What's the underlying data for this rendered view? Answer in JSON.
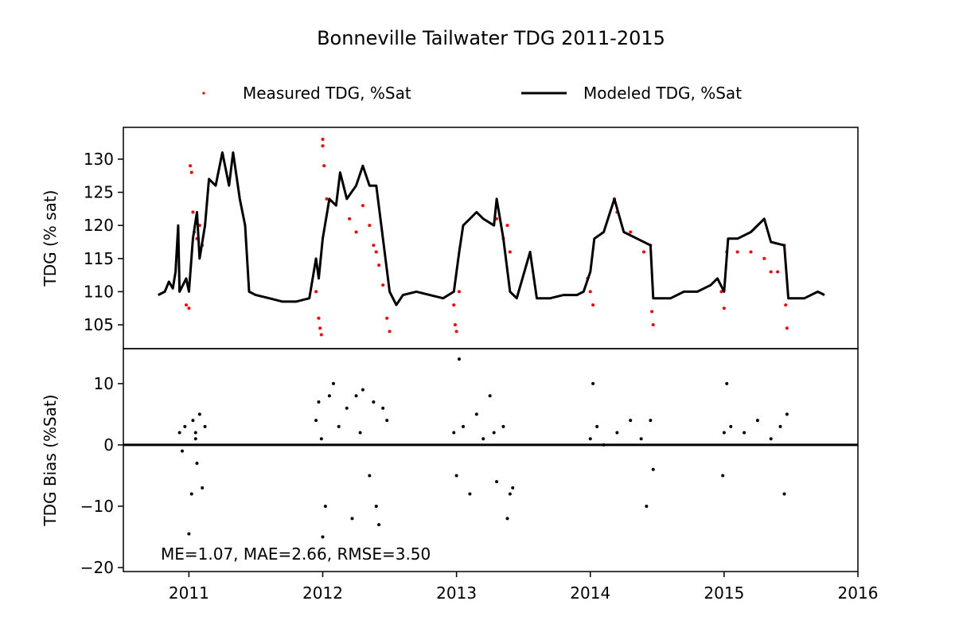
{
  "chart_data": [
    {
      "type": "line",
      "title": "Bonneville Tailwater TDG 2011-2015",
      "ylabel": "TDG (% sat)",
      "xlim": [
        2010.51,
        2016
      ],
      "ylim": [
        101.4,
        134.8
      ],
      "yticks": [
        105,
        110,
        115,
        120,
        125,
        130
      ],
      "legend": "upper center",
      "series": [
        {
          "name": "Measured TDG, %Sat",
          "color": "#ff0000",
          "mode": "markers",
          "x": [
            2010.98,
            2011.0,
            2011.01,
            2011.02,
            2011.03,
            2011.04,
            2011.06,
            2011.08,
            2011.1,
            2011.95,
            2011.97,
            2011.98,
            2011.99,
            2012.0,
            2012.0,
            2012.01,
            2012.03,
            2012.2,
            2012.25,
            2012.3,
            2012.35,
            2012.38,
            2012.4,
            2012.42,
            2012.45,
            2012.48,
            2012.5,
            2012.98,
            2012.99,
            2013.0,
            2013.02,
            2013.3,
            2013.35,
            2013.38,
            2013.4,
            2013.98,
            2014.0,
            2014.02,
            2014.18,
            2014.2,
            2014.3,
            2014.4,
            2014.45,
            2014.46,
            2014.47,
            2014.98,
            2015.0,
            2015.02,
            2015.1,
            2015.2,
            2015.3,
            2015.35,
            2015.4,
            2015.45,
            2015.46,
            2015.47
          ],
          "values": [
            108,
            107.5,
            129,
            128,
            122,
            119,
            118,
            120,
            117,
            110,
            106,
            104.5,
            103.5,
            133,
            132,
            129,
            124,
            121,
            119,
            123,
            120,
            117,
            116,
            114,
            111,
            106,
            104,
            108,
            105,
            104,
            110,
            121,
            118,
            120,
            116,
            112,
            110,
            108,
            124,
            122,
            119,
            116,
            117,
            107,
            105,
            110,
            107.5,
            116,
            116,
            116,
            115,
            113,
            113,
            117,
            108,
            104.5
          ]
        },
        {
          "name": "Modeled TDG, %Sat",
          "color": "#000000",
          "mode": "line",
          "x": [
            2010.77,
            2010.82,
            2010.85,
            2010.88,
            2010.9,
            2010.92,
            2010.93,
            2010.98,
            2011.0,
            2011.03,
            2011.06,
            2011.08,
            2011.12,
            2011.15,
            2011.2,
            2011.25,
            2011.3,
            2011.33,
            2011.38,
            2011.42,
            2011.45,
            2011.5,
            2011.6,
            2011.7,
            2011.8,
            2011.9,
            2011.95,
            2011.97,
            2012.0,
            2012.05,
            2012.1,
            2012.13,
            2012.18,
            2012.25,
            2012.3,
            2012.35,
            2012.4,
            2012.45,
            2012.5,
            2012.55,
            2012.6,
            2012.7,
            2012.8,
            2012.9,
            2012.98,
            2013.02,
            2013.05,
            2013.1,
            2013.15,
            2013.2,
            2013.28,
            2013.3,
            2013.35,
            2013.4,
            2013.45,
            2013.55,
            2013.6,
            2013.7,
            2013.8,
            2013.9,
            2013.95,
            2014.0,
            2014.03,
            2014.1,
            2014.18,
            2014.25,
            2014.35,
            2014.45,
            2014.47,
            2014.6,
            2014.7,
            2014.8,
            2014.9,
            2014.95,
            2015.0,
            2015.03,
            2015.1,
            2015.2,
            2015.3,
            2015.35,
            2015.45,
            2015.48,
            2015.6,
            2015.7,
            2015.75
          ],
          "values": [
            109.5,
            110,
            111.5,
            110.5,
            113,
            120,
            110,
            112,
            110,
            118,
            122,
            115,
            120,
            127,
            126,
            131,
            126,
            131,
            124,
            120,
            110,
            109.5,
            109,
            108.5,
            108.5,
            109,
            115,
            112,
            118,
            124,
            123,
            128,
            124,
            126,
            129,
            126,
            126,
            118,
            110,
            108,
            109.5,
            110,
            109.5,
            109,
            110,
            116,
            120,
            121,
            122,
            121,
            120,
            124,
            118,
            110,
            109,
            116,
            109,
            109,
            109.5,
            109.5,
            110,
            113,
            118,
            119,
            124,
            119,
            118,
            117,
            109,
            109,
            110,
            110,
            111,
            112,
            110,
            118,
            118,
            119,
            121,
            117.5,
            117,
            109,
            109,
            110,
            109.5
          ]
        }
      ]
    },
    {
      "type": "scatter",
      "ylabel": "TDG Bias (%Sat)",
      "annotation": "ME=1.07, MAE=2.66, RMSE=3.50",
      "xlim": [
        2010.51,
        2016
      ],
      "ylim": [
        -20.65,
        15.7
      ],
      "xticks": [
        2011,
        2012,
        2013,
        2014,
        2015,
        2016
      ],
      "yticks": [
        {
          "value": -20,
          "label": "−20"
        },
        {
          "value": -10,
          "label": "−10"
        },
        0,
        10
      ],
      "hline": 0,
      "color": "#000000",
      "x": [
        2010.93,
        2010.95,
        2010.97,
        2011.0,
        2011.02,
        2011.03,
        2011.05,
        2011.06,
        2011.08,
        2011.1,
        2011.12,
        2011.05,
        2011.95,
        2011.97,
        2011.99,
        2012.0,
        2012.02,
        2012.05,
        2012.08,
        2012.12,
        2012.18,
        2012.22,
        2012.25,
        2012.28,
        2012.3,
        2012.35,
        2012.38,
        2012.4,
        2012.42,
        2012.45,
        2012.48,
        2012.98,
        2013.0,
        2013.02,
        2013.05,
        2013.1,
        2013.15,
        2013.2,
        2013.25,
        2013.28,
        2013.3,
        2013.35,
        2013.38,
        2013.4,
        2013.42,
        2014.0,
        2014.02,
        2014.05,
        2014.1,
        2014.2,
        2014.3,
        2014.38,
        2014.42,
        2014.45,
        2014.47,
        2014.99,
        2015.0,
        2015.02,
        2015.05,
        2015.15,
        2015.25,
        2015.35,
        2015.42,
        2015.45,
        2015.47
      ],
      "values": [
        2,
        -1,
        3,
        -14.5,
        -8,
        4,
        1,
        -3,
        5,
        -7,
        3,
        2,
        4,
        7,
        1,
        -15,
        -10,
        8,
        10,
        3,
        6,
        -12,
        8,
        2,
        9,
        -5,
        7,
        -10,
        -13,
        6,
        4,
        2,
        -5,
        14,
        3,
        -8,
        5,
        1,
        8,
        2,
        -6,
        3,
        -12,
        -8,
        -7,
        1,
        10,
        3,
        0,
        2,
        4,
        1,
        -10,
        4,
        -4,
        -5,
        2,
        10,
        3,
        2,
        4,
        1,
        3,
        -8,
        5
      ]
    }
  ]
}
